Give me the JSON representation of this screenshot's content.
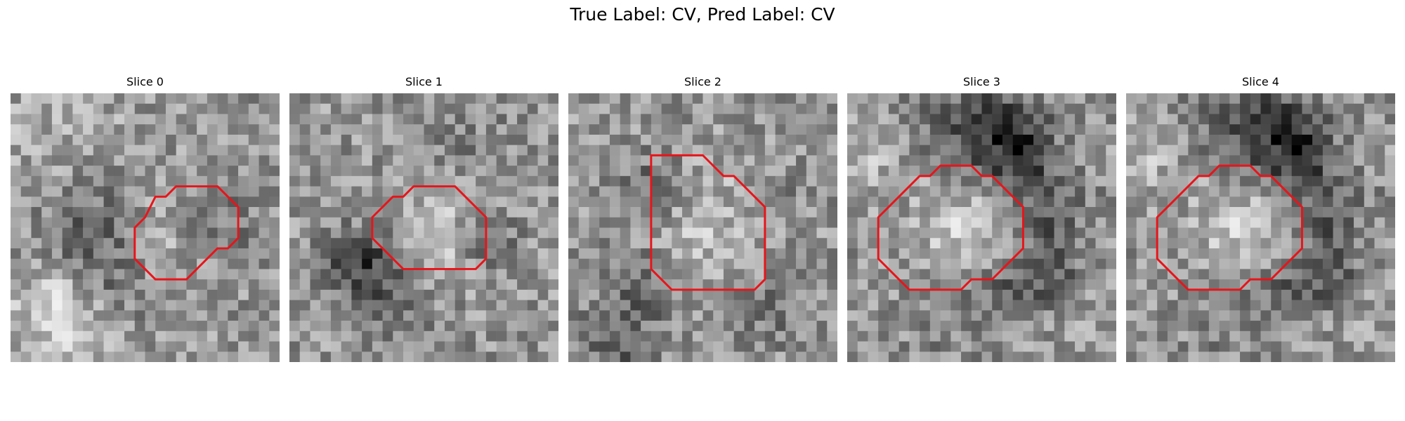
{
  "figure": {
    "title": "True Label: CV, Pred Label: CV",
    "contour_color": "#e8141a"
  },
  "slices": [
    {
      "title": "Slice 0",
      "seed": 11,
      "contour": [
        [
          13,
          12
        ],
        [
          12,
          13
        ],
        [
          12,
          16
        ],
        [
          13,
          17
        ],
        [
          14,
          18
        ],
        [
          17,
          18
        ],
        [
          18,
          17
        ],
        [
          19,
          16
        ],
        [
          20,
          15
        ],
        [
          21,
          15
        ],
        [
          22,
          14
        ],
        [
          22,
          11
        ],
        [
          21,
          10
        ],
        [
          20,
          9
        ],
        [
          16,
          9
        ],
        [
          15,
          10
        ],
        [
          14,
          10
        ]
      ],
      "features": [
        [
          13,
          14,
          2.8,
          40
        ],
        [
          4,
          21,
          3.5,
          55
        ],
        [
          6,
          12,
          3,
          -35
        ],
        [
          9,
          14,
          3,
          -40
        ],
        [
          10,
          18,
          2.5,
          -30
        ],
        [
          20,
          12,
          2.5,
          -30
        ],
        [
          3,
          3,
          5,
          20
        ]
      ]
    },
    {
      "title": "Slice 1",
      "seed": 29,
      "contour": [
        [
          9,
          11
        ],
        [
          8,
          12
        ],
        [
          8,
          14
        ],
        [
          9,
          15
        ],
        [
          10,
          16
        ],
        [
          11,
          17
        ],
        [
          18,
          17
        ],
        [
          19,
          16
        ],
        [
          19,
          12
        ],
        [
          18,
          11
        ],
        [
          17,
          10
        ],
        [
          16,
          9
        ],
        [
          12,
          9
        ],
        [
          11,
          10
        ],
        [
          10,
          10
        ]
      ],
      "features": [
        [
          14,
          13,
          3.8,
          40
        ],
        [
          6,
          16,
          2.5,
          -55
        ],
        [
          8,
          17,
          2.5,
          -50
        ],
        [
          19,
          14,
          2,
          -55
        ],
        [
          12,
          22,
          3,
          -20
        ],
        [
          15,
          4,
          4,
          -20
        ]
      ]
    },
    {
      "title": "Slice 2",
      "seed": 47,
      "contour": [
        [
          8,
          7
        ],
        [
          8,
          17
        ],
        [
          9,
          18
        ],
        [
          10,
          19
        ],
        [
          18,
          19
        ],
        [
          19,
          18
        ],
        [
          19,
          11
        ],
        [
          18,
          10
        ],
        [
          17,
          9
        ],
        [
          16,
          8
        ],
        [
          15,
          8
        ],
        [
          14,
          7
        ],
        [
          13,
          6
        ],
        [
          8,
          6
        ]
      ],
      "features": [
        [
          13,
          13,
          4.5,
          35
        ],
        [
          7,
          9,
          2.5,
          -45
        ],
        [
          7,
          18,
          2.5,
          -45
        ],
        [
          19,
          20,
          2.5,
          -40
        ],
        [
          4,
          24,
          3,
          -45
        ],
        [
          20,
          9,
          2,
          -25
        ]
      ]
    },
    {
      "title": "Slice 3",
      "seed": 63,
      "contour": [
        [
          6,
          9
        ],
        [
          5,
          10
        ],
        [
          4,
          11
        ],
        [
          3,
          12
        ],
        [
          3,
          16
        ],
        [
          4,
          17
        ],
        [
          5,
          18
        ],
        [
          6,
          19
        ],
        [
          11,
          19
        ],
        [
          12,
          18
        ],
        [
          14,
          18
        ],
        [
          15,
          17
        ],
        [
          16,
          16
        ],
        [
          17,
          15
        ],
        [
          17,
          11
        ],
        [
          16,
          10
        ],
        [
          15,
          9
        ],
        [
          14,
          8
        ],
        [
          13,
          8
        ],
        [
          12,
          7
        ],
        [
          9,
          7
        ],
        [
          8,
          8
        ],
        [
          7,
          8
        ]
      ],
      "features": [
        [
          11,
          13,
          3.6,
          45
        ],
        [
          14,
          3,
          3.2,
          -75
        ],
        [
          16,
          5,
          2.5,
          -60
        ],
        [
          19,
          10,
          2.5,
          -55
        ],
        [
          19,
          16,
          2.5,
          -55
        ],
        [
          15,
          19,
          2.8,
          -45
        ],
        [
          9,
          21,
          3,
          -20
        ],
        [
          2,
          5,
          3,
          35
        ],
        [
          20,
          23,
          4,
          10
        ],
        [
          7,
          3,
          3,
          -30
        ]
      ]
    },
    {
      "title": "Slice 4",
      "seed": 63,
      "contour": [
        [
          6,
          9
        ],
        [
          5,
          10
        ],
        [
          4,
          11
        ],
        [
          3,
          12
        ],
        [
          3,
          16
        ],
        [
          4,
          17
        ],
        [
          5,
          18
        ],
        [
          6,
          19
        ],
        [
          11,
          19
        ],
        [
          12,
          18
        ],
        [
          14,
          18
        ],
        [
          15,
          17
        ],
        [
          16,
          16
        ],
        [
          17,
          15
        ],
        [
          17,
          11
        ],
        [
          16,
          10
        ],
        [
          15,
          9
        ],
        [
          14,
          8
        ],
        [
          13,
          8
        ],
        [
          12,
          7
        ],
        [
          9,
          7
        ],
        [
          8,
          8
        ],
        [
          7,
          8
        ]
      ],
      "features": [
        [
          11,
          13,
          3.6,
          45
        ],
        [
          14,
          3,
          3.2,
          -75
        ],
        [
          16,
          5,
          2.5,
          -60
        ],
        [
          19,
          10,
          2.5,
          -55
        ],
        [
          19,
          16,
          2.5,
          -55
        ],
        [
          15,
          19,
          2.8,
          -45
        ],
        [
          9,
          21,
          3,
          -20
        ],
        [
          2,
          5,
          3,
          35
        ],
        [
          20,
          23,
          4,
          10
        ],
        [
          7,
          3,
          3,
          -30
        ]
      ]
    }
  ]
}
